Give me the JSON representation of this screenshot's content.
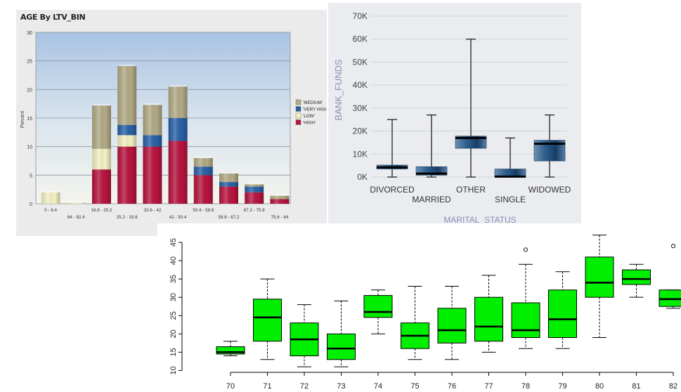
{
  "chart_data": [
    {
      "type": "bar",
      "stacked": true,
      "title": "AGE By LTV_BIN",
      "ylabel": "Percent",
      "ylim": [
        0,
        30
      ],
      "yticks": [
        0,
        5,
        10,
        15,
        20,
        25,
        30
      ],
      "categories": [
        "0 - 8.4",
        "84 - 92.4",
        "16.8 - 25.2",
        "25.2 - 33.6",
        "33.6 - 42",
        "42 - 50.4",
        "50.4 - 58.8",
        "58.8 - 67.2",
        "67.2 - 75.6",
        "75.6 - 84"
      ],
      "series": [
        {
          "name": "'HIGH'",
          "color": "#b8143f",
          "values": [
            0,
            0,
            6,
            10,
            10,
            11,
            5,
            3,
            2,
            0.8
          ]
        },
        {
          "name": "'LOW'",
          "color": "#f4f2c4",
          "values": [
            2,
            0.2,
            3.6,
            2,
            0,
            0,
            0,
            0,
            0,
            0
          ]
        },
        {
          "name": "'VERY HIGH'",
          "color": "#2a62a8",
          "values": [
            0,
            0,
            0,
            1.8,
            2,
            4,
            1.5,
            0.8,
            1,
            0
          ]
        },
        {
          "name": "'MEDIUM'",
          "color": "#b3ab86",
          "values": [
            0,
            0,
            7.6,
            10.3,
            5.3,
            5.5,
            1.5,
            1.5,
            0.4,
            0.6
          ]
        }
      ],
      "legend_order": [
        "'MEDIUM'",
        "'VERY HIGH'",
        "'LOW'",
        "'HIGH'"
      ],
      "legend": "right",
      "grid": true
    },
    {
      "type": "box",
      "xlabel": "MARITAL_STATUS",
      "ylabel": "BANK_FUNDS",
      "ylim": [
        0,
        70000
      ],
      "yticks": [
        "0K",
        "10K",
        "20K",
        "30K",
        "40K",
        "50K",
        "60K",
        "70K"
      ],
      "categories": [
        "DIVORCED",
        "MARRIED",
        "OTHER",
        "SINGLE",
        "WIDOWED"
      ],
      "boxes": [
        {
          "min": 0,
          "q1": 3500,
          "median": 4200,
          "q3": 5200,
          "max": 25000
        },
        {
          "min": 0,
          "q1": 800,
          "median": 1500,
          "q3": 4500,
          "max": 27000
        },
        {
          "min": 0,
          "q1": 12500,
          "median": 17000,
          "q3": 17800,
          "max": 60000
        },
        {
          "min": 0,
          "q1": 0,
          "median": 200,
          "q3": 3500,
          "max": 17000
        },
        {
          "min": 0,
          "q1": 7000,
          "median": 14500,
          "q3": 16000,
          "max": 27000
        }
      ],
      "grid": true
    },
    {
      "type": "box",
      "ylim": [
        9.5,
        47.5
      ],
      "yticks": [
        "10",
        "15",
        "20",
        "25",
        "30",
        "35",
        "40",
        "45"
      ],
      "categories": [
        "70",
        "71",
        "72",
        "73",
        "74",
        "75",
        "76",
        "77",
        "78",
        "79",
        "80",
        "81",
        "82"
      ],
      "color": "#00ee00",
      "boxes": [
        {
          "min": 14,
          "q1": 14.5,
          "median": 15,
          "q3": 16.5,
          "max": 18,
          "outliers": []
        },
        {
          "min": 13,
          "q1": 18,
          "median": 24.5,
          "q3": 29.5,
          "max": 35,
          "outliers": []
        },
        {
          "min": 11,
          "q1": 14,
          "median": 18.5,
          "q3": 23,
          "max": 28,
          "outliers": []
        },
        {
          "min": 11,
          "q1": 13,
          "median": 16,
          "q3": 20,
          "max": 29,
          "outliers": []
        },
        {
          "min": 20,
          "q1": 24.5,
          "median": 26,
          "q3": 30.5,
          "max": 32,
          "outliers": []
        },
        {
          "min": 13,
          "q1": 16,
          "median": 19.5,
          "q3": 23,
          "max": 33,
          "outliers": []
        },
        {
          "min": 13,
          "q1": 17.5,
          "median": 21,
          "q3": 27,
          "max": 33,
          "outliers": []
        },
        {
          "min": 15,
          "q1": 18,
          "median": 22,
          "q3": 30,
          "max": 36,
          "outliers": []
        },
        {
          "min": 16,
          "q1": 19,
          "median": 21,
          "q3": 28.5,
          "max": 39,
          "outliers": [
            43
          ]
        },
        {
          "min": 16,
          "q1": 19,
          "median": 24,
          "q3": 32,
          "max": 37,
          "outliers": []
        },
        {
          "min": 19,
          "q1": 30,
          "median": 34,
          "q3": 41,
          "max": 47,
          "outliers": []
        },
        {
          "min": 30,
          "q1": 33.5,
          "median": 35,
          "q3": 37.5,
          "max": 39,
          "outliers": []
        },
        {
          "min": 27,
          "q1": 27.5,
          "median": 29.5,
          "q3": 32,
          "max": 32,
          "outliers": [
            44
          ]
        }
      ]
    }
  ]
}
